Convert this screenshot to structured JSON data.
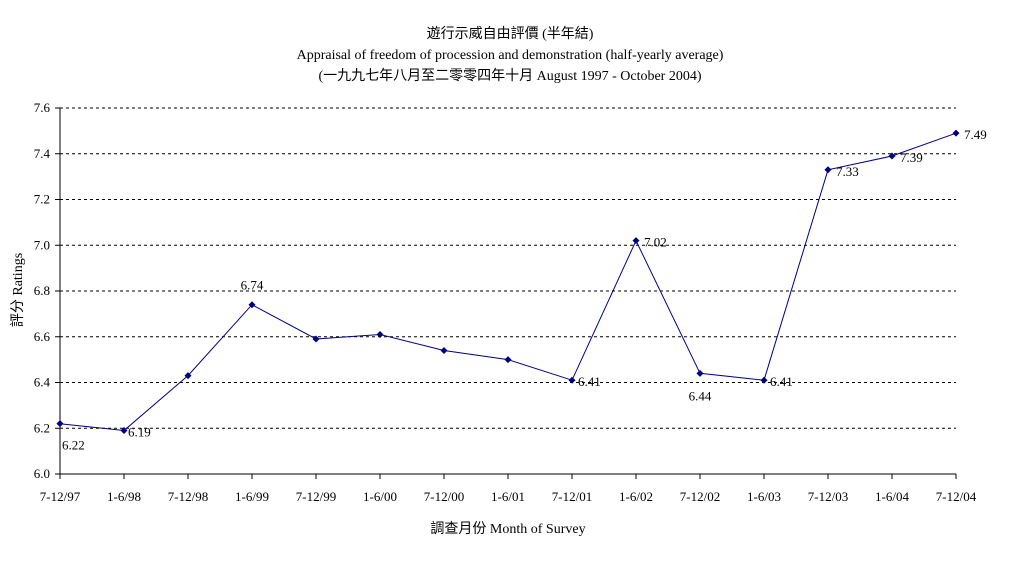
{
  "chart_data": {
    "type": "line",
    "title_lines": [
      "遊行示威自由評價 (半年結)",
      "Appraisal of freedom of procession and demonstration (half-yearly average)",
      "(一九九七年八月至二零零四年十月 August 1997 - October 2004)"
    ],
    "xlabel": "調查月份 Month of Survey",
    "ylabel": "評分 Ratings",
    "ylim": [
      6.0,
      7.6
    ],
    "yticks": [
      "6.0",
      "6.2",
      "6.4",
      "6.6",
      "6.8",
      "7.0",
      "7.2",
      "7.4",
      "7.6"
    ],
    "grid": true,
    "series_color": "#000080",
    "categories": [
      "7-12/97",
      "1-6/98",
      "7-12/98",
      "1-6/99",
      "7-12/99",
      "1-6/00",
      "7-12/00",
      "1-6/01",
      "7-12/01",
      "1-6/02",
      "7-12/02",
      "1-6/03",
      "7-12/03",
      "1-6/04",
      "7-12/04"
    ],
    "values": [
      6.22,
      6.19,
      6.43,
      6.74,
      6.59,
      6.61,
      6.54,
      6.5,
      6.41,
      7.02,
      6.44,
      6.41,
      7.33,
      7.39,
      7.49
    ],
    "data_labels": [
      "6.22",
      "6.19",
      "",
      "6.74",
      "",
      "",
      "",
      "",
      "6.41",
      "7.02",
      "6.44",
      "6.41",
      "7.33",
      "7.39",
      "7.49"
    ]
  }
}
